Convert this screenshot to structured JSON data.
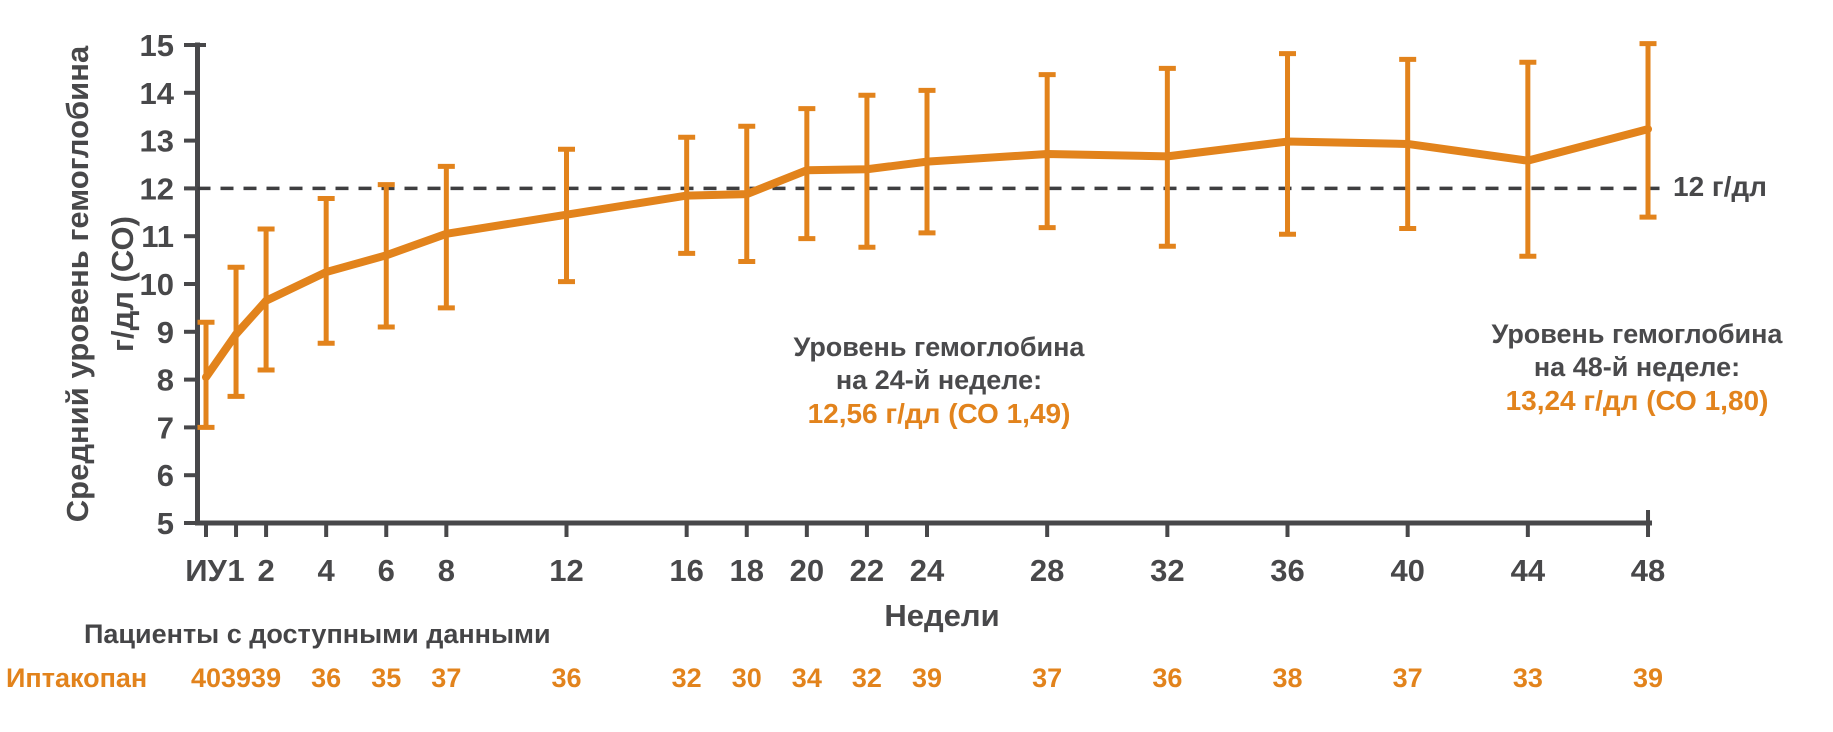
{
  "y_axis": {
    "label_line1": "Средний уровень гемоглобина",
    "label_line2": "г/дл (СО)",
    "ticks": [
      15,
      14,
      13,
      12,
      11,
      10,
      9,
      8,
      7,
      6,
      5
    ]
  },
  "x_axis": {
    "label": "Недели",
    "tick_labels": [
      "ИУ",
      "1",
      "2",
      "4",
      "6",
      "8",
      "12",
      "16",
      "18",
      "20",
      "22",
      "24",
      "28",
      "32",
      "36",
      "40",
      "44",
      "48"
    ]
  },
  "reference_line": {
    "value": 12,
    "label": "12 г/дл"
  },
  "annotations": {
    "week24": {
      "line1": "Уровень гемоглобина",
      "line2": "на 24-й неделе:",
      "value": "12,56 г/дл (СО 1,49)"
    },
    "week48": {
      "line1": "Уровень гемоглобина",
      "line2": "на 48-й неделе:",
      "value": "13,24 г/дл (СО 1,80)"
    }
  },
  "patients_table": {
    "header": "Пациенты с доступными данными",
    "row_label": "Иптакопан",
    "counts": [
      40,
      39,
      39,
      36,
      35,
      37,
      36,
      32,
      30,
      34,
      32,
      39,
      37,
      36,
      38,
      37,
      33,
      39
    ]
  },
  "colors": {
    "accent": "#E2831C",
    "text": "#48484A",
    "reference": "#3E3E40"
  },
  "chart_data": {
    "type": "line",
    "title": "",
    "xlabel": "Недели",
    "ylabel": "Средний уровень гемоглобина г/дл (СО)",
    "ylim": [
      5,
      15
    ],
    "grid": false,
    "reference_y": 12,
    "x_weeks": [
      0,
      1,
      2,
      4,
      6,
      8,
      12,
      16,
      18,
      20,
      22,
      24,
      28,
      32,
      36,
      40,
      44,
      48
    ],
    "x_tick_labels": [
      "ИУ",
      "1",
      "2",
      "4",
      "6",
      "8",
      "12",
      "16",
      "18",
      "20",
      "22",
      "24",
      "28",
      "32",
      "36",
      "40",
      "44",
      "48"
    ],
    "series": [
      {
        "name": "Иптакопан",
        "mean": [
          8.05,
          8.95,
          9.65,
          10.25,
          10.6,
          11.05,
          11.45,
          11.85,
          11.88,
          12.38,
          12.4,
          12.56,
          12.72,
          12.67,
          12.98,
          12.93,
          12.58,
          13.24
        ],
        "lower": [
          7.0,
          7.65,
          8.2,
          8.76,
          9.1,
          9.5,
          10.05,
          10.64,
          10.47,
          10.95,
          10.77,
          11.07,
          11.18,
          10.79,
          11.04,
          11.16,
          10.58,
          11.4
        ],
        "upper": [
          9.2,
          10.35,
          11.15,
          11.79,
          12.08,
          12.46,
          12.82,
          13.07,
          13.3,
          13.67,
          13.95,
          14.05,
          14.38,
          14.51,
          14.82,
          14.7,
          14.64,
          15.03
        ],
        "n_patients": [
          40,
          39,
          39,
          36,
          35,
          37,
          36,
          32,
          30,
          34,
          32,
          39,
          37,
          36,
          38,
          37,
          33,
          39
        ]
      }
    ],
    "annotated_values": [
      {
        "week": 24,
        "text": "12,56 г/дл (СО 1,49)"
      },
      {
        "week": 48,
        "text": "13,24 г/дл (СО 1,80)"
      }
    ]
  }
}
